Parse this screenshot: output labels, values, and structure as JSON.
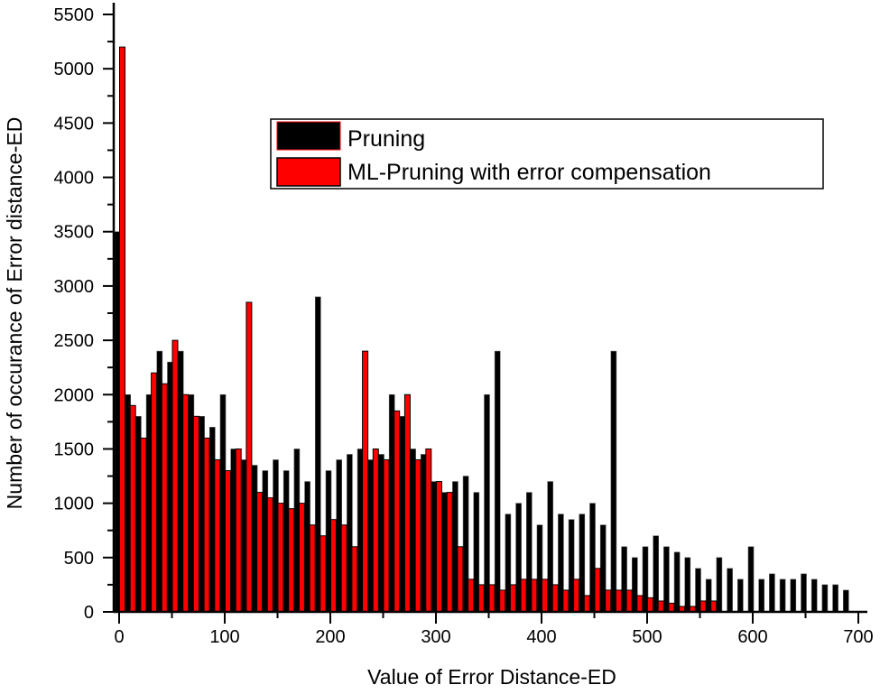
{
  "chart_data": {
    "type": "bar",
    "title": "",
    "xlabel": "Value of Error Distance-ED",
    "ylabel": "Number of occurance of Error distance-ED",
    "xlim": [
      0,
      700
    ],
    "ylim": [
      0,
      5500
    ],
    "x_ticks": [
      0,
      100,
      200,
      300,
      400,
      500,
      600,
      700
    ],
    "y_ticks": [
      0,
      500,
      1000,
      1500,
      2000,
      2500,
      3000,
      3500,
      4000,
      4500,
      5000,
      5500
    ],
    "grid": false,
    "legend_position": "upper right",
    "colors": {
      "Pruning": "#000000",
      "ML-Pruning with error compensation": "#ff0000"
    },
    "series": [
      {
        "name": "Pruning",
        "x": [
          0,
          10,
          20,
          30,
          40,
          50,
          60,
          70,
          80,
          90,
          100,
          110,
          120,
          130,
          140,
          150,
          160,
          170,
          180,
          190,
          200,
          210,
          220,
          230,
          240,
          250,
          260,
          270,
          280,
          290,
          300,
          310,
          320,
          330,
          340,
          350,
          360,
          370,
          380,
          390,
          400,
          410,
          420,
          430,
          440,
          450,
          460,
          470,
          480,
          490,
          500,
          510,
          520,
          530,
          540,
          550,
          560,
          570,
          580,
          590,
          600,
          610,
          620,
          630,
          640,
          650,
          660,
          670,
          680,
          690,
          700
        ],
        "values": [
          3500,
          2000,
          1800,
          2000,
          2400,
          2300,
          2400,
          2000,
          1800,
          1700,
          2000,
          1500,
          1400,
          1350,
          1300,
          1400,
          1300,
          1500,
          1200,
          2900,
          1300,
          1400,
          1450,
          1500,
          1400,
          1450,
          2000,
          1800,
          1500,
          1450,
          1200,
          1100,
          1200,
          1250,
          1100,
          2000,
          2400,
          900,
          1000,
          1100,
          800,
          1200,
          900,
          850,
          900,
          1000,
          800,
          2400,
          600,
          500,
          600,
          700,
          600,
          550,
          500,
          400,
          300,
          500,
          400,
          300,
          600,
          300,
          350,
          300,
          300,
          350,
          300,
          250,
          250,
          200,
          0
        ]
      },
      {
        "name": "ML-Pruning with error compensation",
        "x": [
          0,
          10,
          20,
          30,
          40,
          50,
          60,
          70,
          80,
          90,
          100,
          110,
          120,
          130,
          140,
          150,
          160,
          170,
          180,
          190,
          200,
          210,
          220,
          230,
          240,
          250,
          260,
          270,
          280,
          290,
          300,
          310,
          320,
          330,
          340,
          350,
          360,
          370,
          380,
          390,
          400,
          410,
          420,
          430,
          440,
          450,
          460,
          470,
          480,
          490,
          500,
          510,
          520,
          530,
          540,
          550,
          560
        ],
        "values": [
          5200,
          1900,
          1600,
          2200,
          2100,
          2500,
          2000,
          1800,
          1600,
          1400,
          1300,
          1500,
          2850,
          1100,
          1050,
          1000,
          950,
          1000,
          800,
          700,
          850,
          800,
          600,
          2400,
          1500,
          1400,
          1850,
          2000,
          1400,
          1500,
          1200,
          1100,
          600,
          300,
          250,
          250,
          200,
          250,
          300,
          300,
          300,
          250,
          200,
          300,
          150,
          400,
          200,
          200,
          200,
          150,
          130,
          100,
          80,
          50,
          50,
          100,
          100
        ]
      }
    ]
  },
  "legend": {
    "items": [
      {
        "label": "Pruning",
        "color": "#000000"
      },
      {
        "label": "ML-Pruning with error compensation",
        "color": "#ff0000"
      }
    ]
  }
}
